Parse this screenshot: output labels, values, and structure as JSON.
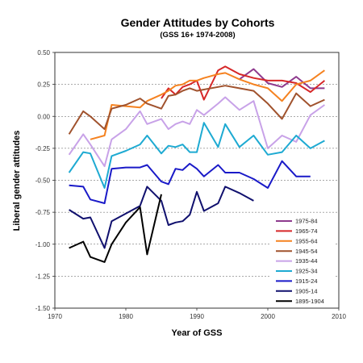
{
  "chart_data": {
    "type": "line",
    "title": "Gender Attitudes by Cohorts",
    "subtitle": "(GSS 16+ 1974-2008)",
    "xlabel": "Year of GSS",
    "ylabel": "Liberal gender attitudes",
    "xlim": [
      1970,
      2010
    ],
    "ylim": [
      -1.5,
      0.5
    ],
    "x_ticks": [
      "1970",
      "1980",
      "1990",
      "2000",
      "2010"
    ],
    "y_ticks": [
      "-1.50",
      "-1.25",
      "-1.00",
      "-0.75",
      "-0.50",
      "-0.25",
      "0.00",
      "0.25",
      "0.50"
    ],
    "grid": "dashed horizontal",
    "legend_position": "right",
    "series": [
      {
        "name": "1975-84",
        "color": "#8E3A8E",
        "points": [
          [
            1996,
            0.29
          ],
          [
            1998,
            0.37
          ],
          [
            2000,
            0.26
          ],
          [
            2002,
            0.23
          ],
          [
            2004,
            0.31
          ],
          [
            2006,
            0.22
          ],
          [
            2008,
            0.22
          ]
        ]
      },
      {
        "name": "1965-74",
        "color": "#D62728",
        "points": [
          [
            1985,
            0.14
          ],
          [
            1986,
            0.22
          ],
          [
            1987,
            0.17
          ],
          [
            1988,
            0.23
          ],
          [
            1989,
            0.25
          ],
          [
            1990,
            0.28
          ],
          [
            1991,
            0.13
          ],
          [
            1993,
            0.36
          ],
          [
            1994,
            0.39
          ],
          [
            1996,
            0.33
          ],
          [
            1998,
            0.3
          ],
          [
            2000,
            0.28
          ],
          [
            2002,
            0.28
          ],
          [
            2004,
            0.26
          ],
          [
            2006,
            0.19
          ],
          [
            2008,
            0.28
          ]
        ]
      },
      {
        "name": "1955-64",
        "color": "#F58220",
        "points": [
          [
            1975,
            -0.18
          ],
          [
            1977,
            -0.15
          ],
          [
            1978,
            0.09
          ],
          [
            1980,
            0.08
          ],
          [
            1982,
            0.07
          ],
          [
            1983,
            0.12
          ],
          [
            1985,
            0.17
          ],
          [
            1986,
            0.2
          ],
          [
            1987,
            0.24
          ],
          [
            1988,
            0.25
          ],
          [
            1989,
            0.28
          ],
          [
            1990,
            0.28
          ],
          [
            1991,
            0.3
          ],
          [
            1993,
            0.33
          ],
          [
            1994,
            0.34
          ],
          [
            1996,
            0.29
          ],
          [
            1998,
            0.25
          ],
          [
            2000,
            0.22
          ],
          [
            2002,
            0.12
          ],
          [
            2004,
            0.25
          ],
          [
            2006,
            0.28
          ],
          [
            2008,
            0.36
          ]
        ]
      },
      {
        "name": "1945-54",
        "color": "#A0522D",
        "points": [
          [
            1972,
            -0.14
          ],
          [
            1974,
            0.04
          ],
          [
            1975,
            0.0
          ],
          [
            1977,
            -0.1
          ],
          [
            1978,
            0.06
          ],
          [
            1980,
            0.09
          ],
          [
            1982,
            0.14
          ],
          [
            1983,
            0.1
          ],
          [
            1985,
            0.06
          ],
          [
            1986,
            0.16
          ],
          [
            1987,
            0.17
          ],
          [
            1988,
            0.2
          ],
          [
            1989,
            0.22
          ],
          [
            1990,
            0.2
          ],
          [
            1991,
            0.21
          ],
          [
            1993,
            0.23
          ],
          [
            1994,
            0.24
          ],
          [
            1996,
            0.22
          ],
          [
            1998,
            0.2
          ],
          [
            2000,
            0.1
          ],
          [
            2002,
            -0.02
          ],
          [
            2004,
            0.18
          ],
          [
            2006,
            0.08
          ],
          [
            2008,
            0.13
          ]
        ]
      },
      {
        "name": "1935-44",
        "color": "#C8A2E8",
        "points": [
          [
            1972,
            -0.3
          ],
          [
            1974,
            -0.14
          ],
          [
            1975,
            -0.22
          ],
          [
            1977,
            -0.39
          ],
          [
            1978,
            -0.18
          ],
          [
            1980,
            -0.1
          ],
          [
            1982,
            0.04
          ],
          [
            1983,
            -0.06
          ],
          [
            1985,
            -0.02
          ],
          [
            1986,
            -0.1
          ],
          [
            1987,
            -0.06
          ],
          [
            1988,
            -0.04
          ],
          [
            1989,
            -0.06
          ],
          [
            1990,
            0.05
          ],
          [
            1991,
            0.01
          ],
          [
            1993,
            0.1
          ],
          [
            1994,
            0.15
          ],
          [
            1996,
            0.05
          ],
          [
            1998,
            0.12
          ],
          [
            2000,
            -0.25
          ],
          [
            2002,
            -0.15
          ],
          [
            2004,
            -0.2
          ],
          [
            2006,
            0.01
          ],
          [
            2008,
            0.09
          ]
        ]
      },
      {
        "name": "1925-34",
        "color": "#1EAAD2",
        "points": [
          [
            1972,
            -0.44
          ],
          [
            1974,
            -0.28
          ],
          [
            1975,
            -0.29
          ],
          [
            1977,
            -0.56
          ],
          [
            1978,
            -0.31
          ],
          [
            1980,
            -0.27
          ],
          [
            1982,
            -0.22
          ],
          [
            1983,
            -0.15
          ],
          [
            1985,
            -0.29
          ],
          [
            1986,
            -0.23
          ],
          [
            1987,
            -0.24
          ],
          [
            1988,
            -0.22
          ],
          [
            1989,
            -0.28
          ],
          [
            1990,
            -0.28
          ],
          [
            1991,
            -0.05
          ],
          [
            1993,
            -0.24
          ],
          [
            1994,
            -0.06
          ],
          [
            1996,
            -0.24
          ],
          [
            1998,
            -0.15
          ],
          [
            2000,
            -0.3
          ],
          [
            2002,
            -0.28
          ],
          [
            2004,
            -0.15
          ],
          [
            2006,
            -0.25
          ],
          [
            2008,
            -0.19
          ]
        ]
      },
      {
        "name": "1915-24",
        "color": "#1A1AC8",
        "points": [
          [
            1972,
            -0.54
          ],
          [
            1974,
            -0.55
          ],
          [
            1975,
            -0.65
          ],
          [
            1977,
            -0.68
          ],
          [
            1978,
            -0.41
          ],
          [
            1980,
            -0.4
          ],
          [
            1982,
            -0.4
          ],
          [
            1983,
            -0.38
          ],
          [
            1985,
            -0.51
          ],
          [
            1986,
            -0.53
          ],
          [
            1987,
            -0.41
          ],
          [
            1988,
            -0.42
          ],
          [
            1989,
            -0.37
          ],
          [
            1990,
            -0.41
          ],
          [
            1991,
            -0.47
          ],
          [
            1993,
            -0.38
          ],
          [
            1994,
            -0.44
          ],
          [
            1996,
            -0.44
          ],
          [
            1998,
            -0.49
          ],
          [
            2000,
            -0.56
          ],
          [
            2002,
            -0.35
          ],
          [
            2004,
            -0.47
          ],
          [
            2006,
            -0.47
          ]
        ]
      },
      {
        "name": "1905-14",
        "color": "#10106E",
        "points": [
          [
            1972,
            -0.73
          ],
          [
            1974,
            -0.8
          ],
          [
            1975,
            -0.79
          ],
          [
            1977,
            -1.03
          ],
          [
            1978,
            -0.82
          ],
          [
            1980,
            -0.76
          ],
          [
            1982,
            -0.7
          ],
          [
            1983,
            -0.55
          ],
          [
            1985,
            -0.66
          ],
          [
            1986,
            -0.85
          ],
          [
            1987,
            -0.83
          ],
          [
            1988,
            -0.82
          ],
          [
            1989,
            -0.77
          ],
          [
            1990,
            -0.59
          ],
          [
            1991,
            -0.74
          ],
          [
            1993,
            -0.68
          ],
          [
            1994,
            -0.55
          ],
          [
            1996,
            -0.6
          ],
          [
            1998,
            -0.66
          ]
        ]
      },
      {
        "name": "1895-1904",
        "color": "#000000",
        "points": [
          [
            1972,
            -1.03
          ],
          [
            1974,
            -0.98
          ],
          [
            1975,
            -1.1
          ],
          [
            1977,
            -1.14
          ],
          [
            1978,
            -1.0
          ],
          [
            1980,
            -0.83
          ],
          [
            1982,
            -0.71
          ],
          [
            1983,
            -1.08
          ],
          [
            1985,
            -0.61
          ]
        ]
      }
    ]
  }
}
